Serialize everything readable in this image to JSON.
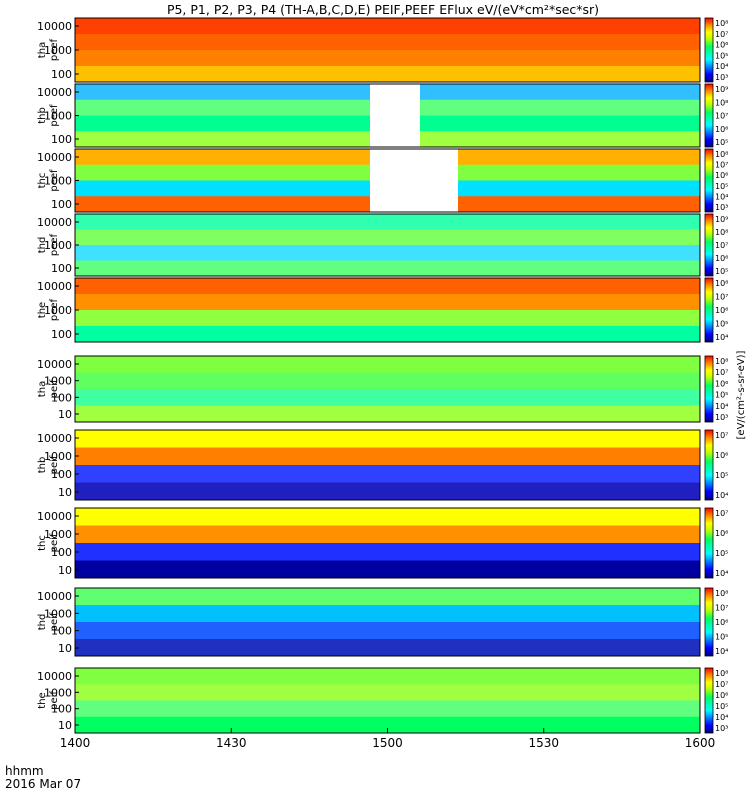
{
  "chart_data": {
    "type": "heatmap",
    "title": "P5, P1, P2, P3, P4 (TH-A,B,C,D,E) PEIF,PEEF EFlux eV/(eV*cm²*sec*sr)",
    "x_ticks": [
      "1400",
      "1430",
      "1500",
      "1530",
      "1600"
    ],
    "x_label_top": "hhmm",
    "x_label_bottom": "2016 Mar 07",
    "colorbar_label_electron": "[eV/(cm²-s-sr-eV)]",
    "colorbar_label_ion": "[eV/(cm^2-s-sr-eV)]",
    "panels": [
      {
        "id": "tha-peef",
        "probe": "tha",
        "product": "peef",
        "label_top": "tha",
        "label_bottom": "peef",
        "yticks": [
          "10000",
          "1000",
          "100"
        ],
        "cbar_ticks": [
          "10⁸",
          "10⁷",
          "10⁶",
          "10⁵",
          "10⁴",
          "10³"
        ]
      },
      {
        "id": "thb-peef",
        "probe": "thb",
        "product": "peef",
        "label_top": "thb",
        "label_bottom": "peef",
        "yticks": [
          "10000",
          "1000",
          "100"
        ],
        "cbar_ticks": [
          "10⁹",
          "10⁸",
          "10⁷",
          "10⁶",
          "10⁵"
        ]
      },
      {
        "id": "thc-peef",
        "probe": "thc",
        "product": "peef",
        "label_top": "thc",
        "label_bottom": "peef",
        "yticks": [
          "10000",
          "1000",
          "100"
        ],
        "cbar_ticks": [
          "10⁸",
          "10⁷",
          "10⁶",
          "10⁵",
          "10⁴",
          "10³"
        ]
      },
      {
        "id": "thd-peef",
        "probe": "thd",
        "product": "peef",
        "label_top": "thd",
        "label_bottom": "peef",
        "yticks": [
          "10000",
          "1000",
          "100"
        ],
        "cbar_ticks": [
          "10⁹",
          "10⁸",
          "10⁷",
          "10⁶",
          "10⁵"
        ]
      },
      {
        "id": "the-peef",
        "probe": "the",
        "product": "peef",
        "label_top": "the",
        "label_bottom": "peef",
        "yticks": [
          "10000",
          "1000",
          "100"
        ],
        "cbar_ticks": [
          "10⁸",
          "10⁷",
          "10⁶",
          "10⁵",
          "10⁴"
        ]
      },
      {
        "id": "tha-peif",
        "probe": "tha",
        "product": "peif",
        "label_top": "tha",
        "label_bottom": "peif",
        "yticks": [
          "10000",
          "1000",
          "100",
          "10"
        ],
        "cbar_ticks": [
          "10⁸",
          "10⁷",
          "10⁶",
          "10⁵",
          "10⁴",
          "10³"
        ]
      },
      {
        "id": "thb-peif",
        "probe": "thb",
        "product": "peif",
        "label_top": "thb",
        "label_bottom": "peif",
        "yticks": [
          "10000",
          "1000",
          "100",
          "10"
        ],
        "cbar_ticks": [
          "10⁷",
          "10⁶",
          "10⁵",
          "10⁴"
        ]
      },
      {
        "id": "thc-peif",
        "probe": "thc",
        "product": "peif",
        "label_top": "thc",
        "label_bottom": "peif",
        "yticks": [
          "10000",
          "1000",
          "100",
          "10"
        ],
        "cbar_ticks": [
          "10⁷",
          "10⁶",
          "10⁵",
          "10⁴"
        ]
      },
      {
        "id": "thd-peif",
        "probe": "thd",
        "product": "peif",
        "label_top": "thd",
        "label_bottom": "peif",
        "yticks": [
          "10000",
          "1000",
          "100",
          "10"
        ],
        "cbar_ticks": [
          "10⁸",
          "10⁷",
          "10⁶",
          "10⁵",
          "10⁴"
        ]
      },
      {
        "id": "the-peif",
        "probe": "the",
        "product": "peif",
        "label_top": "the",
        "label_bottom": "peif",
        "yticks": [
          "10000",
          "1000",
          "100",
          "10"
        ],
        "cbar_ticks": [
          "10⁸",
          "10⁷",
          "10⁶",
          "10⁵",
          "10⁴",
          "10³"
        ]
      }
    ]
  }
}
